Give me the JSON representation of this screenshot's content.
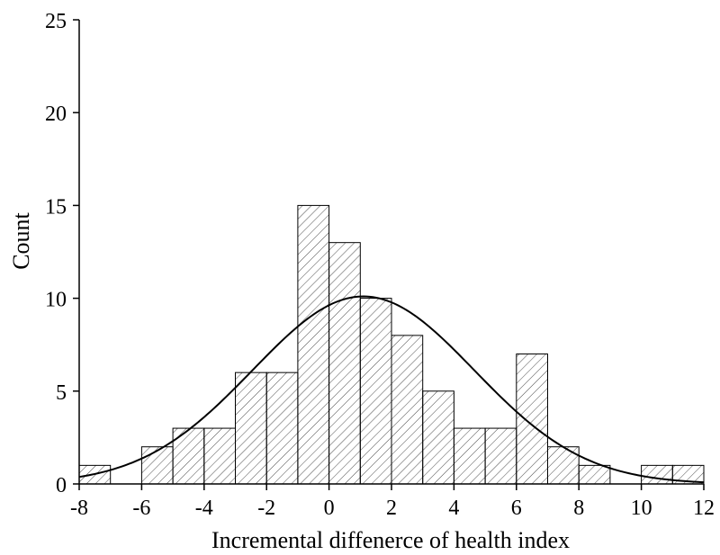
{
  "chart_data": {
    "type": "bar",
    "subtype": "histogram",
    "title": "",
    "xlabel": "Incremental diffenerce of health index",
    "ylabel": "Count",
    "xlim": [
      -8,
      12
    ],
    "ylim": [
      0,
      25
    ],
    "x_ticks": [
      -8,
      -6,
      -4,
      -2,
      0,
      2,
      4,
      6,
      8,
      10,
      12
    ],
    "x_tick_labels": [
      "-8",
      "-6",
      "-4",
      "-2",
      "0",
      "2",
      "4",
      "6",
      "8",
      "10",
      "12"
    ],
    "y_ticks": [
      0,
      5,
      10,
      15,
      20,
      25
    ],
    "y_tick_labels": [
      "0",
      "5",
      "10",
      "15",
      "20",
      "25"
    ],
    "bin_width": 1,
    "bins": [
      {
        "x0": -8,
        "x1": -7,
        "count": 1
      },
      {
        "x0": -7,
        "x1": -6,
        "count": 0
      },
      {
        "x0": -6,
        "x1": -5,
        "count": 2
      },
      {
        "x0": -5,
        "x1": -4,
        "count": 3
      },
      {
        "x0": -4,
        "x1": -3,
        "count": 3
      },
      {
        "x0": -3,
        "x1": -2,
        "count": 6
      },
      {
        "x0": -2,
        "x1": -1,
        "count": 6
      },
      {
        "x0": -1,
        "x1": 0,
        "count": 15
      },
      {
        "x0": 0,
        "x1": 1,
        "count": 13
      },
      {
        "x0": 1,
        "x1": 2,
        "count": 10
      },
      {
        "x0": 2,
        "x1": 3,
        "count": 8
      },
      {
        "x0": 3,
        "x1": 4,
        "count": 5
      },
      {
        "x0": 4,
        "x1": 5,
        "count": 3
      },
      {
        "x0": 5,
        "x1": 6,
        "count": 3
      },
      {
        "x0": 6,
        "x1": 7,
        "count": 7
      },
      {
        "x0": 7,
        "x1": 8,
        "count": 2
      },
      {
        "x0": 8,
        "x1": 9,
        "count": 1
      },
      {
        "x0": 9,
        "x1": 10,
        "count": 0
      },
      {
        "x0": 10,
        "x1": 11,
        "count": 1
      },
      {
        "x0": 11,
        "x1": 12,
        "count": 1
      }
    ],
    "fit_curve": {
      "type": "normal",
      "mean": 1.1,
      "sd": 3.55,
      "peak": 10.1
    },
    "fill_pattern": "diagonal-hatch",
    "grid": false,
    "legend": "none",
    "colors": {
      "bar_stroke": "#000000",
      "hatch": "#000000",
      "curve": "#000000",
      "background": "#ffffff"
    }
  }
}
